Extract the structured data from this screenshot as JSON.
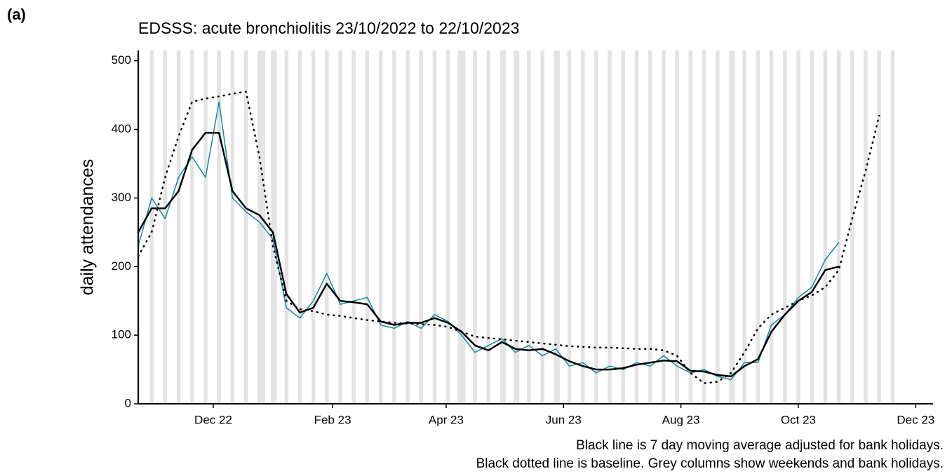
{
  "chart_data": {
    "type": "line",
    "panel_label": "(a)",
    "title": "EDSSS: acute bronchiolitis 23/10/2022 to 22/10/2023",
    "y_label": "daily attendances",
    "captions": [
      "Black line is 7 day moving average adjusted for bank holidays.",
      "Black dotted line is baseline. Grey columns show weekends and bank holidays."
    ],
    "x": [
      "2022-10-23",
      "2022-10-30",
      "2022-11-06",
      "2022-11-13",
      "2022-11-20",
      "2022-11-27",
      "2022-12-04",
      "2022-12-11",
      "2022-12-18",
      "2022-12-25",
      "2023-01-01",
      "2023-01-08",
      "2023-01-15",
      "2023-01-22",
      "2023-01-29",
      "2023-02-05",
      "2023-02-12",
      "2023-02-19",
      "2023-02-26",
      "2023-03-05",
      "2023-03-12",
      "2023-03-19",
      "2023-03-26",
      "2023-04-02",
      "2023-04-09",
      "2023-04-16",
      "2023-04-23",
      "2023-04-30",
      "2023-05-07",
      "2023-05-14",
      "2023-05-21",
      "2023-05-28",
      "2023-06-04",
      "2023-06-11",
      "2023-06-18",
      "2023-06-25",
      "2023-07-02",
      "2023-07-09",
      "2023-07-16",
      "2023-07-23",
      "2023-07-30",
      "2023-08-06",
      "2023-08-13",
      "2023-08-20",
      "2023-08-27",
      "2023-09-03",
      "2023-09-10",
      "2023-09-17",
      "2023-09-24",
      "2023-10-01",
      "2023-10-08",
      "2023-10-15",
      "2023-10-22",
      "2023-10-29",
      "2023-11-05",
      "2023-11-12"
    ],
    "series": [
      {
        "name": "daily attendances",
        "color": "#13879e",
        "style": "solid",
        "width": 1.5,
        "values": [
          230,
          300,
          270,
          330,
          360,
          330,
          440,
          300,
          280,
          265,
          240,
          140,
          125,
          150,
          190,
          145,
          150,
          155,
          115,
          110,
          120,
          110,
          130,
          120,
          100,
          75,
          85,
          95,
          75,
          85,
          70,
          80,
          55,
          60,
          45,
          55,
          50,
          60,
          55,
          70,
          55,
          45,
          50,
          40,
          35,
          60,
          60,
          115,
          130,
          155,
          170,
          210,
          235,
          null,
          null,
          null
        ]
      },
      {
        "name": "7 day moving average",
        "color": "#000000",
        "style": "solid",
        "width": 2.5,
        "values": [
          250,
          285,
          285,
          310,
          370,
          395,
          395,
          310,
          285,
          275,
          250,
          160,
          133,
          140,
          175,
          150,
          148,
          145,
          120,
          115,
          118,
          118,
          125,
          118,
          105,
          85,
          78,
          90,
          80,
          78,
          80,
          72,
          62,
          55,
          50,
          50,
          52,
          57,
          60,
          63,
          62,
          48,
          47,
          42,
          40,
          55,
          65,
          105,
          130,
          150,
          163,
          195,
          200,
          null,
          null,
          null
        ]
      },
      {
        "name": "baseline",
        "color": "#000000",
        "style": "dotted",
        "width": 2.5,
        "values": [
          215,
          250,
          330,
          390,
          440,
          445,
          448,
          452,
          455,
          360,
          230,
          150,
          138,
          135,
          130,
          128,
          125,
          122,
          120,
          118,
          117,
          116,
          115,
          112,
          105,
          98,
          96,
          94,
          92,
          90,
          88,
          86,
          84,
          83,
          82,
          82,
          81,
          80,
          80,
          78,
          70,
          45,
          30,
          32,
          45,
          75,
          110,
          130,
          140,
          150,
          158,
          170,
          195,
          270,
          340,
          420
        ]
      }
    ],
    "weekends": [
      "2022-10-22",
      "2022-10-29",
      "2022-11-05",
      "2022-11-12",
      "2022-11-19",
      "2022-11-26",
      "2022-12-03",
      "2022-12-10",
      "2022-12-17",
      "2022-12-24",
      "2022-12-31",
      "2023-01-07",
      "2023-01-14",
      "2023-01-21",
      "2023-01-28",
      "2023-02-04",
      "2023-02-11",
      "2023-02-18",
      "2023-02-25",
      "2023-03-04",
      "2023-03-11",
      "2023-03-18",
      "2023-03-25",
      "2023-04-01",
      "2023-04-08",
      "2023-04-15",
      "2023-04-22",
      "2023-04-29",
      "2023-05-06",
      "2023-05-13",
      "2023-05-20",
      "2023-05-27",
      "2023-06-03",
      "2023-06-10",
      "2023-06-17",
      "2023-06-24",
      "2023-07-01",
      "2023-07-08",
      "2023-07-15",
      "2023-07-22",
      "2023-07-29",
      "2023-08-05",
      "2023-08-12",
      "2023-08-19",
      "2023-08-26",
      "2023-09-02",
      "2023-09-09",
      "2023-09-16",
      "2023-09-23",
      "2023-09-30",
      "2023-10-07",
      "2023-10-14",
      "2023-10-21",
      "2023-10-28",
      "2023-11-04",
      "2023-11-11",
      "2023-11-18"
    ],
    "bank_holidays": [
      "2022-12-26",
      "2022-12-27",
      "2023-01-02",
      "2023-04-07",
      "2023-04-10",
      "2023-05-01",
      "2023-05-08",
      "2023-05-29",
      "2023-08-28"
    ],
    "shade_color": "#e3e3e3",
    "xlim": [
      "2022-10-23",
      "2023-12-10"
    ],
    "xticks": [
      {
        "value": "2022-12-01",
        "label": "Dec 22"
      },
      {
        "value": "2023-02-01",
        "label": "Feb 23"
      },
      {
        "value": "2023-04-01",
        "label": "Apr 23"
      },
      {
        "value": "2023-06-01",
        "label": "Jun 23"
      },
      {
        "value": "2023-08-01",
        "label": "Aug 23"
      },
      {
        "value": "2023-10-01",
        "label": "Oct 23"
      },
      {
        "value": "2023-12-01",
        "label": "Dec 23"
      }
    ],
    "ylim": [
      0,
      515
    ],
    "yticks": [
      0,
      100,
      200,
      300,
      400,
      500
    ],
    "grid": false
  }
}
